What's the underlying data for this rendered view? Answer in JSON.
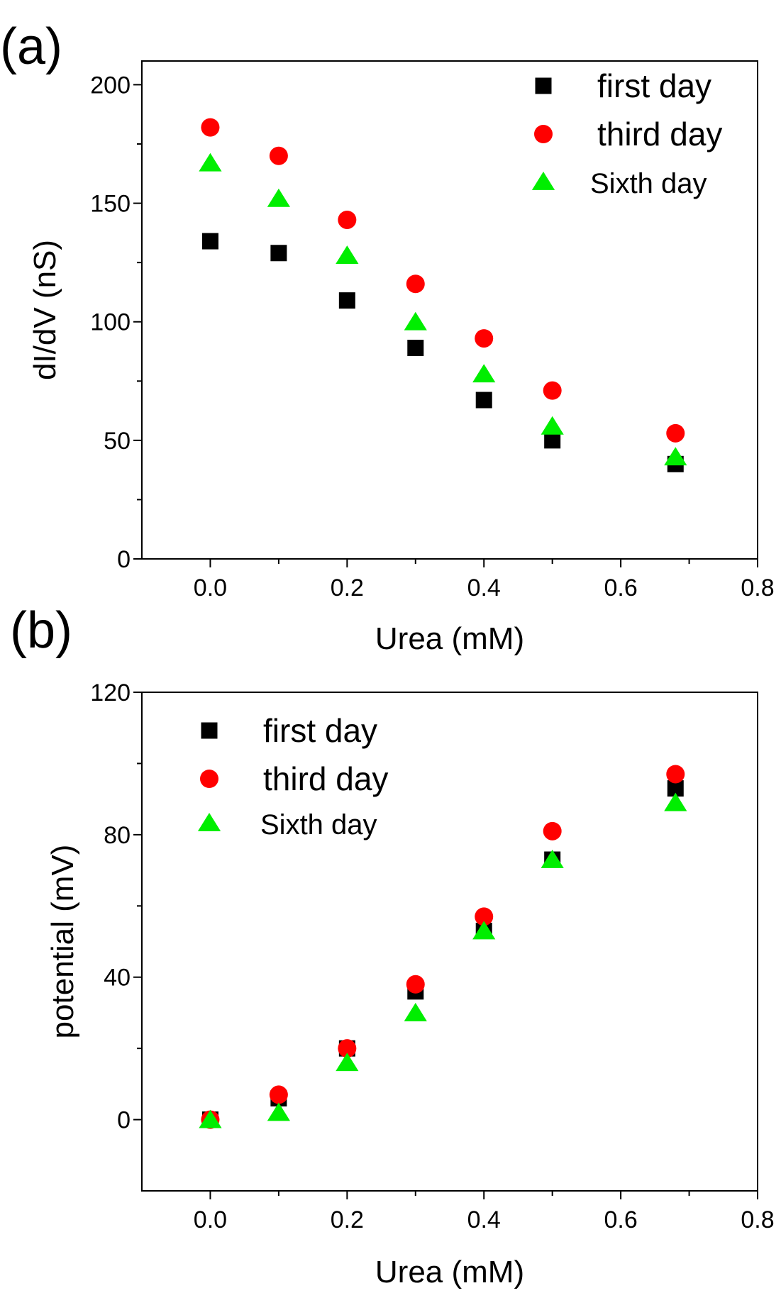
{
  "chart_data": [
    {
      "type": "scatter",
      "panel_label": "(a)",
      "title": "",
      "xlabel": "Urea (mM)",
      "ylabel": "dI/dV (nS)",
      "xlim": [
        -0.1,
        0.8
      ],
      "ylim": [
        0,
        210
      ],
      "xticks": [
        0.0,
        0.2,
        0.4,
        0.6,
        0.8
      ],
      "xtick_labels": [
        "0.0",
        "0.2",
        "0.4",
        "0.6",
        "0.8"
      ],
      "yticks": [
        0,
        50,
        100,
        150,
        200
      ],
      "ytick_labels": [
        "0",
        "50",
        "100",
        "150",
        "200"
      ],
      "legend_position": "top-right",
      "x": [
        0.0,
        0.1,
        0.2,
        0.3,
        0.4,
        0.5,
        0.68
      ],
      "series": [
        {
          "name": "first day",
          "marker": "square",
          "color": "#000000",
          "values": [
            134,
            129,
            109,
            89,
            67,
            50,
            40
          ]
        },
        {
          "name": "third day",
          "marker": "circle",
          "color": "#ff0000",
          "values": [
            182,
            170,
            143,
            116,
            93,
            71,
            53
          ]
        },
        {
          "name": "Sixth day",
          "marker": "triangle",
          "color": "#00ee00",
          "values": [
            167,
            152,
            128,
            100,
            78,
            56,
            43
          ]
        }
      ]
    },
    {
      "type": "scatter",
      "panel_label": "(b)",
      "title": "",
      "xlabel": "Urea (mM)",
      "ylabel": "potential (mV)",
      "xlim": [
        -0.1,
        0.8
      ],
      "ylim": [
        -20,
        120
      ],
      "xticks": [
        0.0,
        0.2,
        0.4,
        0.6,
        0.8
      ],
      "xtick_labels": [
        "0.0",
        "0.2",
        "0.4",
        "0.6",
        "0.8"
      ],
      "yticks": [
        0,
        40,
        80,
        120
      ],
      "ytick_labels": [
        "0",
        "40",
        "80",
        "120"
      ],
      "legend_position": "top-left",
      "x": [
        0.0,
        0.1,
        0.2,
        0.3,
        0.4,
        0.5,
        0.68
      ],
      "series": [
        {
          "name": "first day",
          "marker": "square",
          "color": "#000000",
          "values": [
            0,
            6,
            20,
            36,
            53,
            73,
            93
          ]
        },
        {
          "name": "third day",
          "marker": "circle",
          "color": "#ff0000",
          "values": [
            0,
            7,
            20,
            38,
            57,
            81,
            97
          ]
        },
        {
          "name": "Sixth day",
          "marker": "triangle",
          "color": "#00ee00",
          "values": [
            0,
            2,
            16,
            30,
            53,
            73,
            89
          ]
        }
      ]
    }
  ]
}
